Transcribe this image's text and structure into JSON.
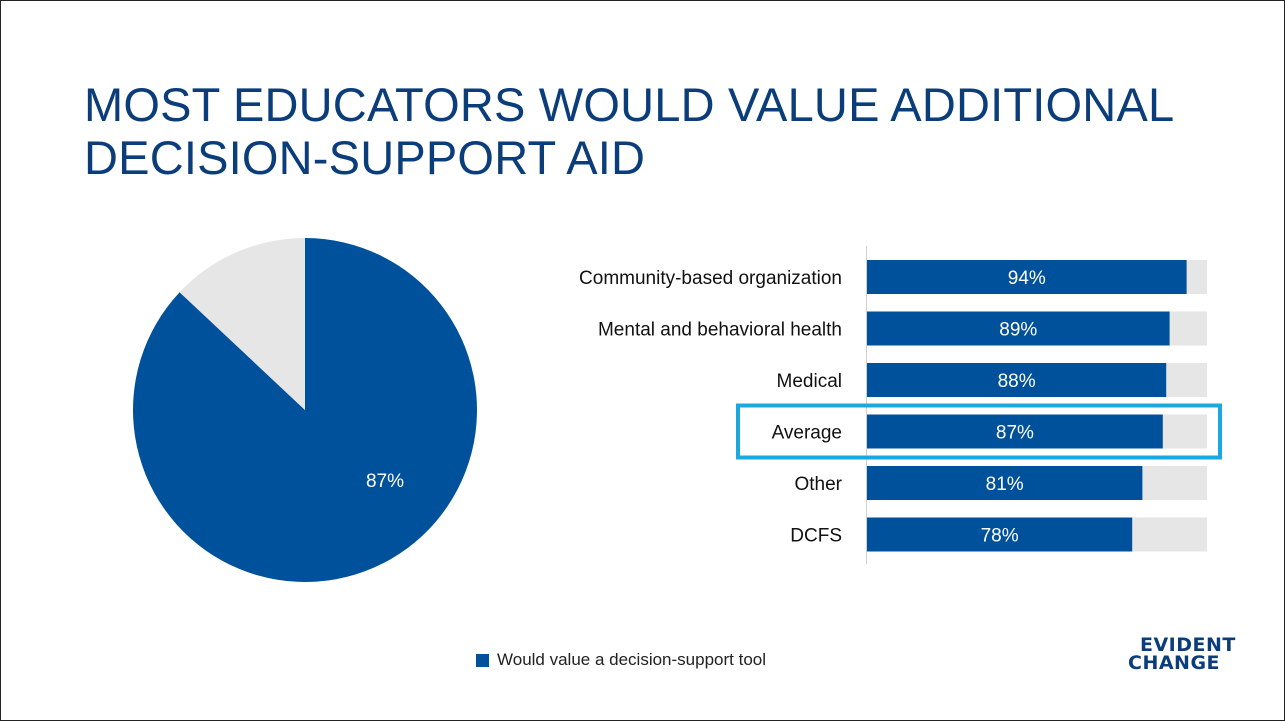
{
  "title": "MOST EDUCATORS WOULD VALUE ADDITIONAL DECISION-SUPPORT AID",
  "colors": {
    "primary": "#00519b",
    "remainder": "#e6e6e6",
    "highlight": "#1ba9dd",
    "title": "#0b3d7a"
  },
  "legend": {
    "label": "Would value a decision-support tool"
  },
  "logo": {
    "line1": "EVIDENT",
    "line2": "CHANGE"
  },
  "chart_data": [
    {
      "type": "pie",
      "slices": [
        {
          "value": 87,
          "label": "87%"
        },
        {
          "value": 13,
          "label": ""
        }
      ],
      "legend": [
        "Would value a decision-support tool"
      ]
    },
    {
      "type": "bar",
      "orientation": "horizontal",
      "stacked_to_100": true,
      "categories": [
        "Community-based organization",
        "Mental and behavioral health",
        "Medical",
        "Average",
        "Other",
        "DCFS"
      ],
      "series": [
        {
          "name": "Would value a decision-support tool",
          "values": [
            94,
            89,
            88,
            87,
            81,
            78
          ],
          "labels": [
            "94%",
            "89%",
            "88%",
            "87%",
            "81%",
            "78%"
          ]
        }
      ],
      "xlim": [
        0,
        100
      ],
      "highlighted_category": "Average"
    }
  ]
}
